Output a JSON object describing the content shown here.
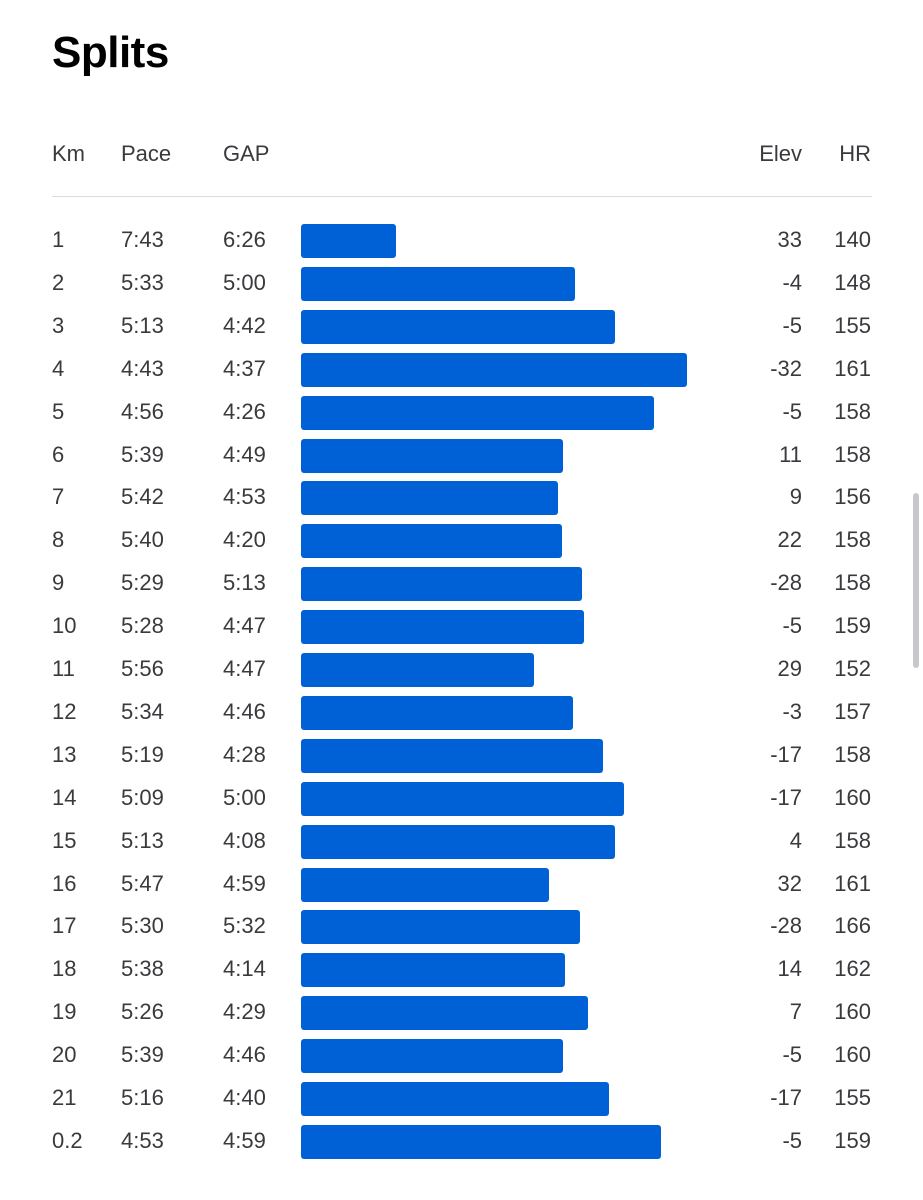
{
  "title": "Splits",
  "columns": {
    "km": "Km",
    "pace": "Pace",
    "gap": "GAP",
    "elev": "Elev",
    "hr": "HR"
  },
  "bar_color": "#0061d6",
  "splits": [
    {
      "km": "1",
      "pace": "7:43",
      "gap": "6:26",
      "elev": "33",
      "hr": "140"
    },
    {
      "km": "2",
      "pace": "5:33",
      "gap": "5:00",
      "elev": "-4",
      "hr": "148"
    },
    {
      "km": "3",
      "pace": "5:13",
      "gap": "4:42",
      "elev": "-5",
      "hr": "155"
    },
    {
      "km": "4",
      "pace": "4:43",
      "gap": "4:37",
      "elev": "-32",
      "hr": "161"
    },
    {
      "km": "5",
      "pace": "4:56",
      "gap": "4:26",
      "elev": "-5",
      "hr": "158"
    },
    {
      "km": "6",
      "pace": "5:39",
      "gap": "4:49",
      "elev": "11",
      "hr": "158"
    },
    {
      "km": "7",
      "pace": "5:42",
      "gap": "4:53",
      "elev": "9",
      "hr": "156"
    },
    {
      "km": "8",
      "pace": "5:40",
      "gap": "4:20",
      "elev": "22",
      "hr": "158"
    },
    {
      "km": "9",
      "pace": "5:29",
      "gap": "5:13",
      "elev": "-28",
      "hr": "158"
    },
    {
      "km": "10",
      "pace": "5:28",
      "gap": "4:47",
      "elev": "-5",
      "hr": "159"
    },
    {
      "km": "11",
      "pace": "5:56",
      "gap": "4:47",
      "elev": "29",
      "hr": "152"
    },
    {
      "km": "12",
      "pace": "5:34",
      "gap": "4:46",
      "elev": "-3",
      "hr": "157"
    },
    {
      "km": "13",
      "pace": "5:19",
      "gap": "4:28",
      "elev": "-17",
      "hr": "158"
    },
    {
      "km": "14",
      "pace": "5:09",
      "gap": "5:00",
      "elev": "-17",
      "hr": "160"
    },
    {
      "km": "15",
      "pace": "5:13",
      "gap": "4:08",
      "elev": "4",
      "hr": "158"
    },
    {
      "km": "16",
      "pace": "5:47",
      "gap": "4:59",
      "elev": "32",
      "hr": "161"
    },
    {
      "km": "17",
      "pace": "5:30",
      "gap": "5:32",
      "elev": "-28",
      "hr": "166"
    },
    {
      "km": "18",
      "pace": "5:38",
      "gap": "4:14",
      "elev": "14",
      "hr": "162"
    },
    {
      "km": "19",
      "pace": "5:26",
      "gap": "4:29",
      "elev": "7",
      "hr": "160"
    },
    {
      "km": "20",
      "pace": "5:39",
      "gap": "4:46",
      "elev": "-5",
      "hr": "160"
    },
    {
      "km": "21",
      "pace": "5:16",
      "gap": "4:40",
      "elev": "-17",
      "hr": "155"
    },
    {
      "km": "0.2",
      "pace": "4:53",
      "gap": "4:59",
      "elev": "-5",
      "hr": "159"
    }
  ]
}
